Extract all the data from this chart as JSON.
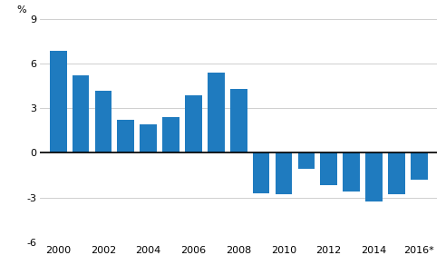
{
  "years": [
    2000,
    2001,
    2002,
    2003,
    2004,
    2005,
    2006,
    2007,
    2008,
    2009,
    2010,
    2011,
    2012,
    2013,
    2014,
    2015,
    2016
  ],
  "values": [
    6.9,
    5.2,
    4.2,
    2.2,
    1.9,
    2.4,
    3.9,
    5.4,
    4.3,
    -2.7,
    -2.8,
    -1.1,
    -2.2,
    -2.6,
    -3.3,
    -2.8,
    -1.8
  ],
  "bar_color": "#1f7bbf",
  "ylim": [
    -6,
    9
  ],
  "yticks": [
    -6,
    -3,
    0,
    3,
    6,
    9
  ],
  "ylabel": "%",
  "xtick_labels": [
    "2000",
    "2002",
    "2004",
    "2006",
    "2008",
    "2010",
    "2012",
    "2014",
    "2016*"
  ],
  "xtick_positions": [
    2000,
    2002,
    2004,
    2006,
    2008,
    2010,
    2012,
    2014,
    2016
  ],
  "background_color": "#ffffff",
  "grid_color": "#c8c8c8",
  "zero_line_color": "#000000",
  "bar_width": 0.75
}
